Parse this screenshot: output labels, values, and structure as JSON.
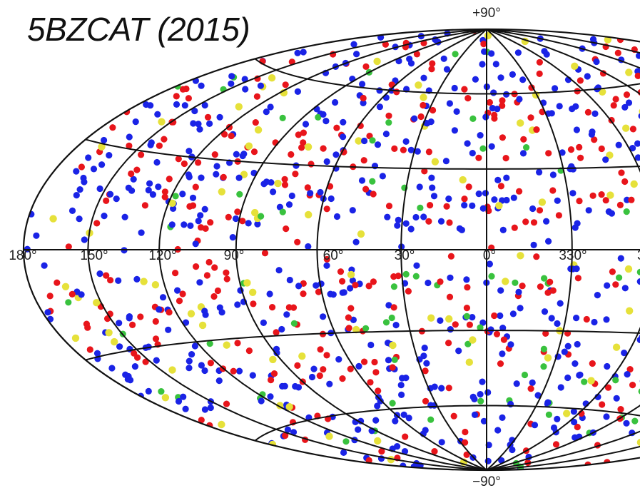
{
  "title": "5BZCAT (2015)",
  "projection": "aitoff-hammer all-sky",
  "pole_labels": {
    "north": "+90°",
    "south": "−90°"
  },
  "longitude_labels": [
    "180°",
    "150°",
    "120°",
    "90°",
    "60°",
    "30°",
    "0°",
    "330°",
    "3"
  ],
  "graticule": {
    "longitude_step_deg": 30,
    "latitude_lines_deg": [
      -60,
      -30,
      0,
      30,
      60
    ]
  },
  "colors": {
    "grid": "#111111",
    "red": "#e8151b",
    "blue": "#1a23e6",
    "green": "#39c23e",
    "yellow": "#e6e13a",
    "background": "#ffffff"
  },
  "sources": {
    "categories": [
      "red",
      "blue",
      "green",
      "yellow"
    ],
    "approx_fraction": [
      0.33,
      0.55,
      0.06,
      0.06
    ],
    "approx_total": 1400
  }
}
